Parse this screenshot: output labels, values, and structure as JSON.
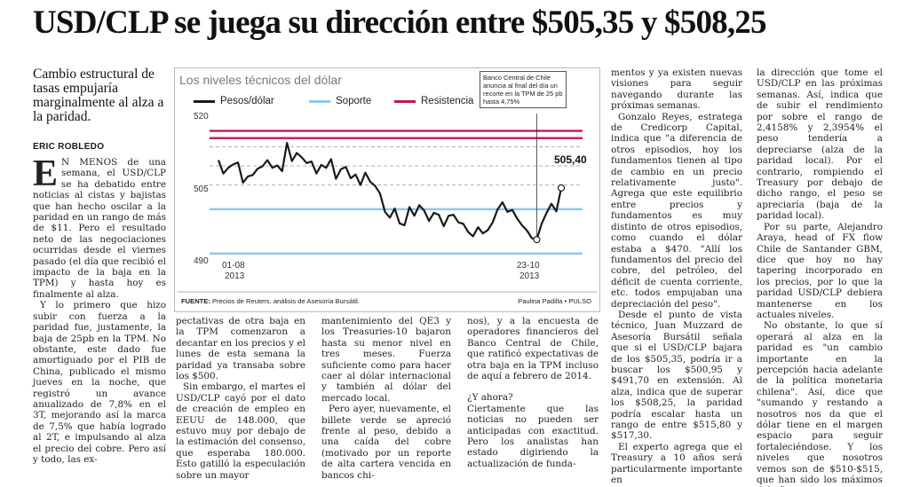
{
  "headline": "USD/CLP se juega su dirección entre  $505,35 y $508,25",
  "deck": "Cambio estructural de tasas empujaría marginalmente al alza a la paridad.",
  "byline": "ERIC ROBLEDO",
  "col1": {
    "dropcap": "E",
    "p1": "N MENOS de una semana, el USD/CLP se ha debatido entre noticias al cistas y bajistas que han hecho oscilar a la paridad en un rango de más de $11. Pero el resultado neto de las negociaciones ocurridas desde el viernes pasado (el día que recibió el impacto de la baja en la TPM) y hasta hoy es finalmente al alza.",
    "p2": "Y lo primero que hizo subir con fuerza a la paridad fue, justamente, la baja de 25pb en la TPM. No obstante, este dado fue amortiguado por el PIB de China, publicado el mismo jueves en la noche, que registró un avance anualizado de 7,8% en el 3T, mejorando así la marca de 7,5% que había logrado al 2T, e impulsando al alza el precio del cobre. Pero así y todo, las ex-"
  },
  "col2": {
    "p1": "pectativas de otra baja en la TPM comenzaron a decantar en los precios y el lunes de esta semana la paridad ya transaba sobre los $500.",
    "p2": "Sin embargo, el martes el USD/CLP cayó por el dato de creación de empleo en EEUU de 148.000, que estuvo muy por debajo de la estimación del consenso, que esperaba 180.000. Esto gatilló la especulación sobre un mayor"
  },
  "col3": {
    "p1": "mantenimiento del QE3 y los Treasuries-10 bajaron hasta su menor nivel en tres meses. Fuerza suficiente como para hacer caer al dólar internacional y también al dólar del mercado local.",
    "p2": "Pero ayer, nuevamente, el billete verde se apreció frente al peso, debido a una caída del cobre (motivado por un reporte de alta cartera vencida en bancos chi-"
  },
  "col4": {
    "p1": "nos), y a la encuesta de operadores financieros del Banco Central de Chile, que ratificó expectativas de otra baja en la TPM incluso de aquí a febrero de 2014.",
    "subhead": "¿Y ahora?",
    "p2": "Ciertamente que las noticias no pueden ser anticipadas con exactitud. Pero los analistas han estado digiriendo la actualización de funda-"
  },
  "col5": {
    "p1": "mentos y ya existen nuevas visiones para seguir navegando durante las próximas semanas.",
    "p2": "Gonzalo Reyes, estratega de Credicorp Capital, indica que \"a diferencia de otros episodios, hoy los fundamentos tienen al tipo de cambio en un precio relativamente justo\". Agrega que este equilibrio entre precios y fundamentos es muy distinto de otros episodios, como cuando el dólar estaba a $470. \"Allí los fundamentos del precio del cobre, del petróleo, del déficit de cuenta corriente, etc. todos empujaban una depreciación del peso\".",
    "p3": "Desde el punto de vista técnico, Juan Muzzard de Asesoría Bursátil señala que si el USD/CLP bajara de los $505,35, podría ir a buscar los $500,95 y $491,70 en extensión. Al alza, indica que de superar los $508,25, la paridad podría escalar hasta un rango de entre $515,80 y $517,30.",
    "p4": "El experto agrega que el Treasury a 10 años será particularmente importante en"
  },
  "col6": {
    "p1": "la dirección que tome el USD/CLP en las próximas semanas. Así, indica que de subir el rendimiento por sobre el rango de 2,4158% y 2,3954% el peso tendería a depreciarse (alza de la paridad local). Por el contrario, rompiendo el Treasury por debajo de dicho rango, el peso se apreciaría (baja de la paridad local).",
    "p2": "Por su parte, Alejandro Araya, head of FX flow Chile de Santander GBM, dice que hoy no hay tapering incorporado en los precios, por lo que la paridad USD/CLP debiera mantenerse en los actuales niveles.",
    "p3": "No obstante, lo que sí operará al alza en la paridad es \"un cambio importante en la percepción hacia adelante de la política monetaria chilena\". Así, dice que \"sumando y restando a nosotros nos da que el dólar tiene en el margen espacio para seguir fortaleciéndose. Y los niveles que nosotros vemos son de $510-$515, que han sido los máximos del año.",
    "end_mark": "●"
  },
  "chart_data": {
    "type": "line",
    "title": "Los niveles técnicos del dólar",
    "legend": [
      {
        "name": "Pesos/dólar",
        "color": "#1a1a1a"
      },
      {
        "name": "Soporte",
        "color": "#8ec9e6"
      },
      {
        "name": "Resistencia",
        "color": "#c2185b"
      }
    ],
    "yticks": [
      "520",
      "505",
      "490"
    ],
    "ylim": [
      488,
      523
    ],
    "xticks": [
      {
        "label": "01-08",
        "year": "2013"
      },
      {
        "label": "23-10",
        "year": "2013"
      }
    ],
    "resistance_levels": [
      517.3,
      515.8
    ],
    "support_levels": [
      500.95,
      491.7
    ],
    "reference_lines": [
      514,
      510,
      506
    ],
    "annotation": "Banco Central de Chile anuncia al final del día un recorte en la TPM de 25 pb hasta 4,75%",
    "last_value_label": "505,40",
    "source_label": "FUENTE:",
    "source": "Precios de Reuters, análisis de Asesoría Bursátil.",
    "credit": "Paulina Padilla • PULSO",
    "series": [
      {
        "name": "Pesos/dólar",
        "values": [
          511.2,
          508.4,
          509.6,
          510.3,
          510.7,
          506.5,
          507.8,
          508.1,
          509.4,
          509.9,
          511.2,
          509.6,
          510.1,
          508.9,
          514.8,
          511.0,
          512.7,
          511.8,
          510.6,
          510.9,
          508.4,
          510.2,
          509.6,
          511.4,
          507.3,
          509.3,
          509.8,
          507.4,
          508.2,
          506.0,
          508.6,
          506.7,
          505.8,
          504.2,
          500.4,
          499.2,
          501.1,
          498.0,
          497.6,
          501.4,
          499.6,
          501.8,
          500.7,
          498.5,
          500.2,
          499.8,
          497.4,
          499.6,
          499.8,
          498.2,
          497.9,
          496.2,
          495.3,
          497.2,
          495.9,
          496.6,
          498.2,
          500.9,
          502.4,
          500.4,
          500.8,
          499.0,
          497.6,
          496.5,
          494.9,
          494.6,
          497.9,
          500.2,
          502.1,
          500.5,
          505.4
        ]
      }
    ]
  }
}
